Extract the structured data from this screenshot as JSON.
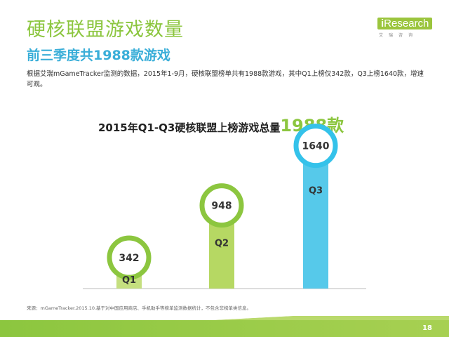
{
  "header": {
    "title": "硬核联盟游戏数量",
    "subtitle": "前三季度共1988款游戏",
    "description": "根据艾瑞mGameTracker监测的数据，2015年1-9月，硬核联盟榜单共有1988款游戏，其中Q1上榜仅342款，Q3上榜1640款，增速可观。"
  },
  "logo": {
    "text_prefix": "i",
    "text_main": "Research",
    "cn": "艾瑞咨询"
  },
  "chart_data": {
    "type": "bar",
    "title": "2015年Q1-Q3硬核联盟上榜游戏总量",
    "title_highlight": "1988款",
    "categories": [
      "Q1",
      "Q2",
      "Q3"
    ],
    "values": [
      342,
      948,
      1640
    ],
    "ylim": [
      0,
      1800
    ],
    "colors": [
      "#c5df7f",
      "#b6d863",
      "#56c9ea"
    ],
    "ring_colors": [
      "#8cc63f",
      "#8cc63f",
      "#34c2ea"
    ],
    "grid": false
  },
  "footer": {
    "source": "来源：mGameTracker.2015.10.基于对中国应用商店、手机助手等榜单监测数据统计，不包含非榜单类信息。",
    "page": "18"
  }
}
